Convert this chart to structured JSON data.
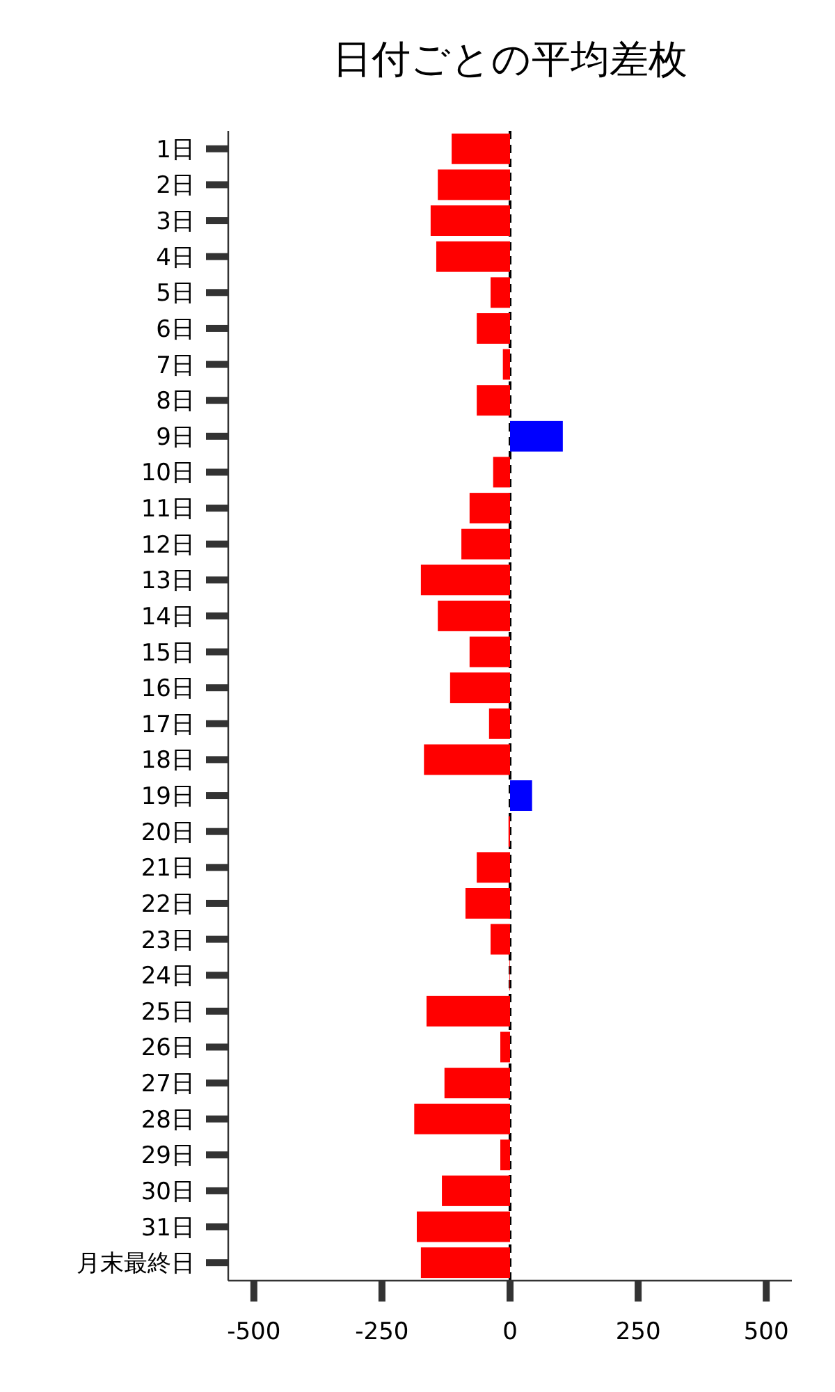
{
  "chart_data": {
    "type": "bar",
    "orientation": "horizontal",
    "title": "日付ごとの平均差枚",
    "categories": [
      "1日",
      "2日",
      "3日",
      "4日",
      "5日",
      "6日",
      "7日",
      "8日",
      "9日",
      "10日",
      "11日",
      "12日",
      "13日",
      "14日",
      "15日",
      "16日",
      "17日",
      "18日",
      "19日",
      "20日",
      "21日",
      "22日",
      "23日",
      "24日",
      "25日",
      "26日",
      "27日",
      "28日",
      "29日",
      "30日",
      "31日",
      "月末最終日"
    ],
    "values": [
      -114,
      -141,
      -155,
      -144,
      -38,
      -65,
      -14,
      -65,
      103,
      -33,
      -79,
      -95,
      -174,
      -141,
      -79,
      -117,
      -41,
      -168,
      43,
      -3,
      -65,
      -87,
      -38,
      -1,
      -163,
      -19,
      -128,
      -187,
      -19,
      -133,
      -182,
      -174
    ],
    "colors": [
      "#ff0000",
      "#ff0000",
      "#ff0000",
      "#ff0000",
      "#ff0000",
      "#ff0000",
      "#ff0000",
      "#ff0000",
      "#0000ff",
      "#ff0000",
      "#ff0000",
      "#ff0000",
      "#ff0000",
      "#ff0000",
      "#ff0000",
      "#ff0000",
      "#ff0000",
      "#ff0000",
      "#0000ff",
      "#ff0000",
      "#ff0000",
      "#ff0000",
      "#ff0000",
      "#ff0000",
      "#ff0000",
      "#ff0000",
      "#ff0000",
      "#ff0000",
      "#ff0000",
      "#ff0000",
      "#ff0000",
      "#ff0000"
    ],
    "xlim": [
      -550,
      550
    ],
    "xticks": [
      -500,
      -250,
      0,
      250,
      500
    ],
    "ref_lines": [
      {
        "axis": "x",
        "value": 0,
        "color": "#000000",
        "line_style": "dashed"
      }
    ],
    "grid": false
  }
}
